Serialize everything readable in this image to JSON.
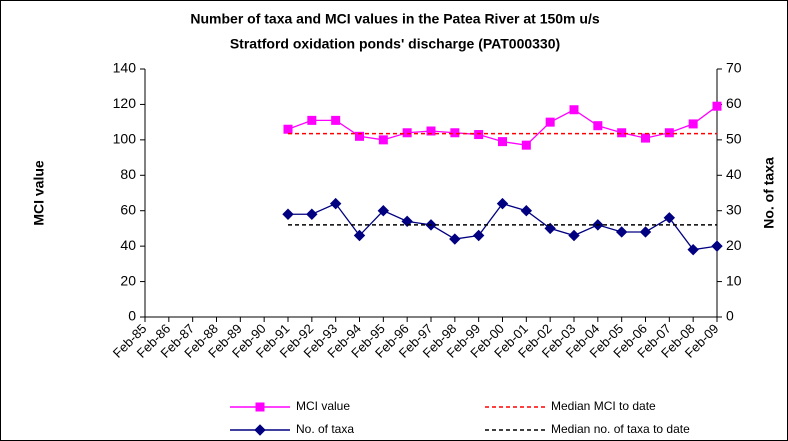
{
  "chart_data": {
    "type": "line",
    "title": "Number of taxa and MCI values in the Patea River at 150m u/s",
    "subtitle": "Stratford oxidation ponds' discharge (PAT000330)",
    "y_label": "MCI value",
    "y2_label": "No. of taxa",
    "categories": [
      "Feb-85",
      "Feb-86",
      "Feb-87",
      "Feb-88",
      "Feb-89",
      "Feb-90",
      "Feb-91",
      "Feb-92",
      "Feb-93",
      "Feb-94",
      "Feb-95",
      "Feb-96",
      "Feb-97",
      "Feb-98",
      "Feb-99",
      "Feb-00",
      "Feb-01",
      "Feb-02",
      "Feb-03",
      "Feb-04",
      "Feb-05",
      "Feb-06",
      "Feb-07",
      "Feb-08",
      "Feb-09"
    ],
    "series": [
      {
        "name": "MCI value",
        "color": "#ff00ff",
        "marker": "square",
        "values": [
          null,
          null,
          null,
          null,
          null,
          null,
          106,
          111,
          111,
          102,
          100,
          104,
          105,
          104,
          103,
          99,
          97,
          110,
          117,
          108,
          104,
          101,
          104,
          109,
          119
        ]
      },
      {
        "name": "No. of taxa",
        "color": "#000080",
        "marker": "diamond",
        "axis": "y2",
        "values": [
          null,
          null,
          null,
          null,
          null,
          null,
          29,
          29,
          32,
          23,
          30,
          27,
          26,
          22,
          23,
          32,
          30,
          25,
          23,
          26,
          24,
          24,
          28,
          19,
          20
        ]
      },
      {
        "name": "Median MCI to date",
        "color": "#ff0000",
        "dashed": true,
        "values": [
          null,
          null,
          null,
          null,
          null,
          null,
          103.5,
          103.5,
          103.5,
          103.5,
          103.5,
          103.5,
          103.5,
          103.5,
          103.5,
          103.5,
          103.5,
          103.5,
          103.5,
          103.5,
          103.5,
          103.5,
          103.5,
          103.5,
          103.5
        ]
      },
      {
        "name": "Median no. of taxa to date",
        "color": "#000000",
        "dashed": true,
        "axis": "y2",
        "values": [
          null,
          null,
          null,
          null,
          null,
          null,
          26,
          26,
          26,
          26,
          26,
          26,
          26,
          26,
          26,
          26,
          26,
          26,
          26,
          26,
          26,
          26,
          26,
          26,
          26
        ]
      }
    ],
    "ylim": [
      0,
      140
    ],
    "yticks": [
      0,
      20,
      40,
      60,
      80,
      100,
      120,
      140
    ],
    "y2lim": [
      0,
      70
    ],
    "y2ticks": [
      0,
      10,
      20,
      30,
      40,
      50,
      60,
      70
    ],
    "grid": false
  }
}
